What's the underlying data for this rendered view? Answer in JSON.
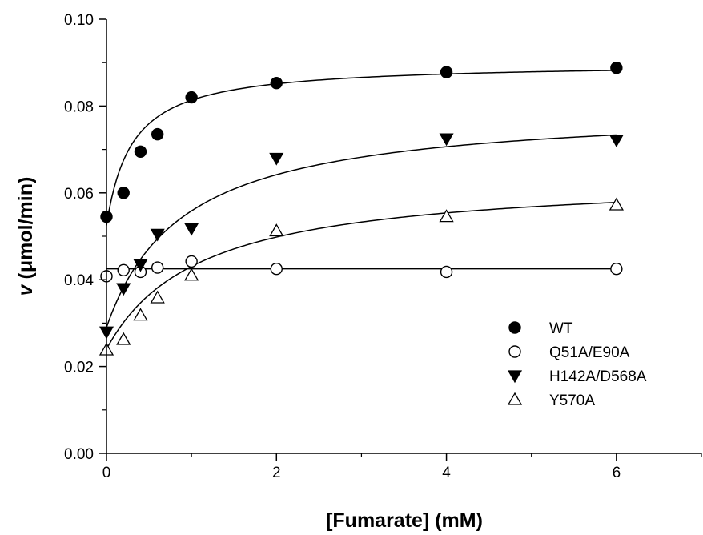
{
  "chart_data": {
    "type": "scatter",
    "xlabel": "[Fumarate] (mM)",
    "ylabel_symbol": "v",
    "ylabel_units": "(μmol/min)",
    "xlim": [
      0,
      7
    ],
    "ylim": [
      0,
      0.1
    ],
    "xticks_major": [
      0,
      2,
      4,
      6
    ],
    "xtick_labels": [
      "0",
      "2",
      "4",
      "6"
    ],
    "xticks_minor": [
      1,
      3,
      5,
      7
    ],
    "yticks_major": [
      0,
      0.02,
      0.04,
      0.06,
      0.08,
      0.1
    ],
    "ytick_labels": [
      "0.00",
      "0.02",
      "0.04",
      "0.06",
      "0.08",
      "0.10"
    ],
    "yticks_minor": [
      0.01,
      0.03,
      0.05,
      0.07,
      0.09
    ],
    "grid": false,
    "legend_position": "lower-right",
    "series": [
      {
        "name": "WT",
        "marker": "circle-filled",
        "x": [
          0,
          0.2,
          0.4,
          0.6,
          1,
          2,
          4,
          6
        ],
        "y": [
          0.0545,
          0.06,
          0.0695,
          0.0735,
          0.082,
          0.0853,
          0.0878,
          0.0888
        ],
        "fit": {
          "model": "michaelis-menten",
          "v0": 0.0525,
          "vmax": 0.0375,
          "km": 0.3
        }
      },
      {
        "name": "Q51A/E90A",
        "marker": "circle-open",
        "x": [
          0,
          0.2,
          0.4,
          0.6,
          1,
          2,
          4,
          6
        ],
        "y": [
          0.0408,
          0.0422,
          0.0418,
          0.0428,
          0.0442,
          0.0425,
          0.0418,
          0.0425
        ],
        "fit": {
          "model": "constant",
          "value": 0.0425
        }
      },
      {
        "name": "H142A/D568A",
        "marker": "triangle-down-filled",
        "x": [
          0,
          0.2,
          0.4,
          0.6,
          1,
          2,
          4,
          6
        ],
        "y": [
          0.028,
          0.038,
          0.0435,
          0.0505,
          0.0518,
          0.068,
          0.0725,
          0.0722
        ],
        "fit": {
          "model": "michaelis-menten",
          "v0": 0.029,
          "vmax": 0.051,
          "km": 0.9
        }
      },
      {
        "name": "Y570A",
        "marker": "triangle-up-open",
        "x": [
          0,
          0.2,
          0.4,
          0.6,
          1,
          2,
          4,
          6
        ],
        "y": [
          0.0238,
          0.0262,
          0.0318,
          0.0358,
          0.041,
          0.0512,
          0.0545,
          0.0572
        ],
        "fit": {
          "model": "michaelis-menten",
          "v0": 0.024,
          "vmax": 0.04,
          "km": 1.1
        }
      }
    ]
  }
}
